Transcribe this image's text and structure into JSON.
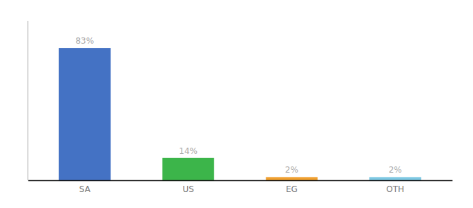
{
  "chart_data": {
    "type": "bar",
    "categories": [
      "SA",
      "US",
      "EG",
      "OTH"
    ],
    "values": [
      83,
      14,
      2,
      2
    ],
    "value_labels": [
      "83%",
      "14%",
      "2%",
      "2%"
    ],
    "colors": [
      "#4472c4",
      "#3cb54a",
      "#f0a030",
      "#7ec8e3"
    ],
    "ylim": [
      0,
      100
    ],
    "data_labels": true,
    "grid": false,
    "tick_labels": "x"
  }
}
